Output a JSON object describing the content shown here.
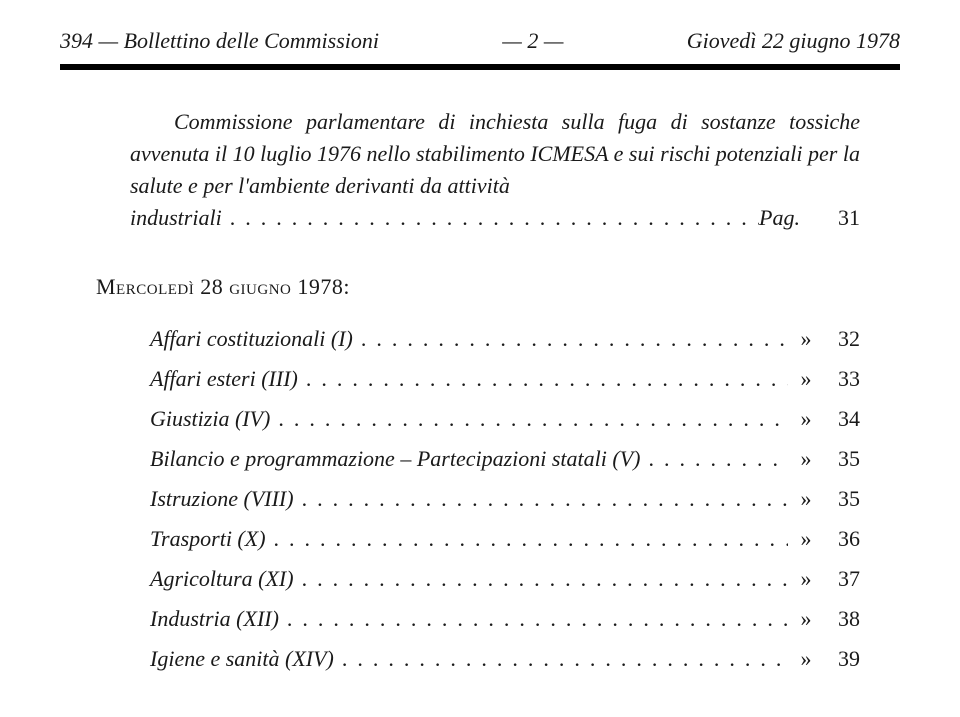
{
  "header": {
    "page_left": "394",
    "title_left": "Bollettino delle Commissioni",
    "center": "— 2 —",
    "right": "Giovedì 22 giugno 1978"
  },
  "top_paragraph": {
    "lines_before_last": "Commissione parlamentare di inchiesta sulla fuga di sostanze tossiche avvenuta il 10 luglio 1976 nello stabilimento ICMESA e sui rischi potenziali per la salute e per l'ambiente derivanti da attività",
    "last_line_text": "industriali",
    "pag_label": "Pag.",
    "pag_num": "31"
  },
  "section_heading": "Mercoledì 28 giugno 1978:",
  "toc": [
    {
      "label": "Affari costituzionali (I)",
      "marker": "»",
      "num": "32"
    },
    {
      "label": "Affari esteri (III)",
      "marker": "»",
      "num": "33"
    },
    {
      "label": "Giustizia (IV)",
      "marker": "»",
      "num": "34"
    },
    {
      "label": "Bilancio e programmazione – Partecipazioni statali (V)",
      "marker": "»",
      "num": "35"
    },
    {
      "label": "Istruzione (VIII)",
      "marker": "»",
      "num": "35"
    },
    {
      "label": "Trasporti (X)",
      "marker": "»",
      "num": "36"
    },
    {
      "label": "Agricoltura (XI)",
      "marker": "»",
      "num": "37"
    },
    {
      "label": "Industria (XII)",
      "marker": "»",
      "num": "38"
    },
    {
      "label": "Igiene e sanità (XIV)",
      "marker": "»",
      "num": "39"
    }
  ],
  "colors": {
    "text": "#1a1a1a",
    "background": "#ffffff",
    "rule": "#000000"
  },
  "typography": {
    "base_fontsize_pt": 16,
    "font_family": "Times New Roman"
  },
  "dot_leader": "..................................................................."
}
